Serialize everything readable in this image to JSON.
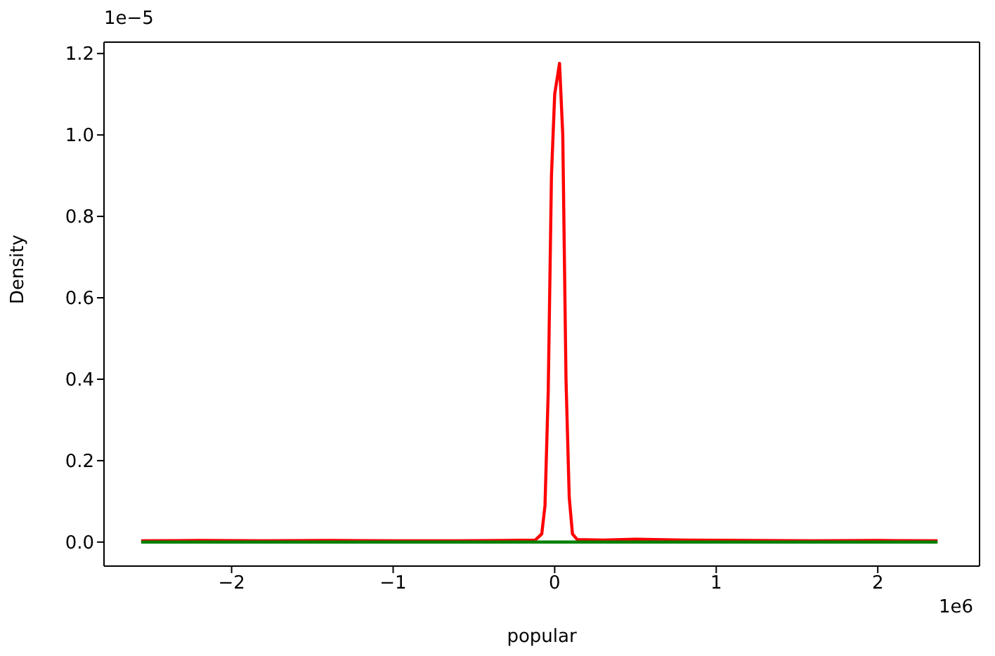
{
  "chart_data": {
    "type": "line",
    "xlabel": "popular",
    "ylabel": "Density",
    "annotations": [
      "1e6",
      "1e−5"
    ],
    "xlim": [
      -2.79,
      2.63
    ],
    "ylim": [
      -0.059,
      1.228
    ],
    "xticks": [
      {
        "value": -2,
        "label": "−2"
      },
      {
        "value": -1,
        "label": "−1"
      },
      0,
      1,
      2
    ],
    "yticks": [
      {
        "value": 0,
        "label": "0.0"
      },
      0.2,
      0.4,
      0.6,
      0.8,
      {
        "value": 1,
        "label": "1.0"
      },
      1.2
    ],
    "grid": false,
    "marker": "none",
    "line_style": "solid",
    "series": [
      {
        "color": "#ff0000",
        "x": [
          -2.56,
          -2.2,
          -1.8,
          -1.4,
          -1.0,
          -0.6,
          -0.3,
          -0.12,
          -0.08,
          -0.06,
          -0.04,
          -0.02,
          0.0,
          0.03,
          0.05,
          0.07,
          0.09,
          0.11,
          0.14,
          0.3,
          0.5,
          0.8,
          1.2,
          1.6,
          2.0,
          2.37
        ],
        "values": [
          0.003,
          0.004,
          0.003,
          0.004,
          0.003,
          0.003,
          0.004,
          0.005,
          0.02,
          0.09,
          0.37,
          0.9,
          1.1,
          1.176,
          1.0,
          0.4,
          0.11,
          0.02,
          0.006,
          0.005,
          0.007,
          0.005,
          0.004,
          0.003,
          0.004,
          0.003
        ]
      },
      {
        "color": "#008000",
        "x": [
          -2.56,
          2.37
        ],
        "values": [
          0,
          0
        ]
      }
    ]
  }
}
